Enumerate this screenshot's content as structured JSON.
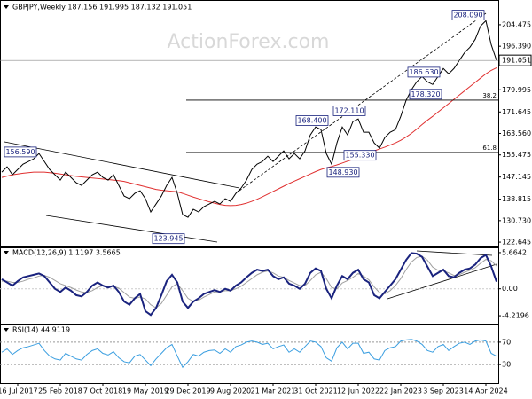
{
  "chart_data": [
    {
      "type": "line",
      "title": "GBPJPY,Weekly 187.156 191.995 187.132 191.051",
      "watermark": "ActionForex.com",
      "categories": [
        null,
        null,
        null,
        "16 Jul 2017",
        null,
        null,
        null,
        null,
        null,
        null,
        null,
        "25 Feb 2018",
        null,
        null,
        null,
        null,
        null,
        null,
        null,
        "7 Oct 2018",
        null,
        null,
        null,
        null,
        null,
        null,
        null,
        "19 May 2019",
        null,
        null,
        null,
        null,
        null,
        null,
        null,
        "29 Dec 2019",
        null,
        null,
        null,
        null,
        null,
        null,
        null,
        "9 Aug 2020",
        null,
        null,
        null,
        null,
        null,
        null,
        null,
        "21 Mar 2021",
        null,
        null,
        null,
        null,
        null,
        null,
        null,
        "31 Oct 2021",
        null,
        null,
        null,
        null,
        null,
        null,
        null,
        "12 Jun 2022",
        null,
        null,
        null,
        null,
        null,
        null,
        null,
        "22 Jan 2023",
        null,
        null,
        null,
        null,
        null,
        null,
        null,
        "3 Sep 2023",
        null,
        null,
        null,
        null,
        null,
        null,
        null,
        "14 Apr 2024",
        null,
        null
      ],
      "series": [
        {
          "color": "#000000",
          "values": [
            149,
            151,
            148,
            150,
            152,
            153,
            154,
            156,
            153,
            150,
            148,
            146,
            149,
            147,
            145,
            144,
            146,
            148,
            149,
            147,
            146,
            148,
            144,
            140,
            139,
            141,
            142,
            139,
            134,
            137,
            140,
            144,
            147,
            141,
            133,
            132,
            135,
            134,
            136,
            137,
            138,
            137,
            139,
            138,
            141,
            143,
            146,
            150,
            152,
            153,
            155,
            153,
            155,
            157,
            154,
            156,
            154,
            157,
            163,
            166,
            165,
            156,
            152,
            160,
            166,
            163,
            168,
            169,
            164,
            164,
            160,
            158,
            162,
            164,
            165,
            170,
            176,
            180,
            183,
            185,
            183,
            182,
            185,
            188,
            186,
            188,
            191,
            194,
            196,
            199,
            204,
            206,
            197,
            191.051
          ]
        },
        {
          "color": "#e03030",
          "values": [
            147,
            147.5,
            148,
            148.3,
            148.6,
            148.8,
            149,
            149,
            149,
            148.8,
            148.6,
            148.3,
            148,
            147.7,
            147.4,
            147.2,
            147,
            146.8,
            146.6,
            146.4,
            146.2,
            146,
            145.8,
            145.5,
            145,
            144.5,
            144,
            143.5,
            143,
            142.5,
            142.2,
            142,
            141.8,
            141.6,
            141,
            140.3,
            139.6,
            139,
            138.4,
            137.8,
            137.3,
            136.8,
            136.5,
            136.4,
            136.5,
            136.8,
            137.3,
            138,
            138.8,
            139.7,
            140.7,
            141.7,
            142.7,
            143.7,
            144.7,
            145.6,
            146.5,
            147.4,
            148.3,
            149.2,
            150,
            150.6,
            151.1,
            151.7,
            152.4,
            153.1,
            153.8,
            154.6,
            155.4,
            156.2,
            157,
            157.7,
            158.4,
            159.2,
            160,
            161,
            162.2,
            163.6,
            165.2,
            166.9,
            168.5,
            170,
            171.6,
            173.2,
            174.8,
            176.4,
            178,
            179.6,
            181.2,
            182.8,
            184.4,
            186,
            187.3,
            188.3
          ]
        }
      ],
      "ylim": [
        121,
        213.8
      ],
      "yticks": [
        204.475,
        {
          "value": 196.39,
          "label": "196.390"
        },
        179.995,
        171.645,
        {
          "value": 163.56,
          "label": "163.560"
        },
        155.475,
        147.145,
        138.815,
        {
          "value": 130.73,
          "label": "130.730"
        },
        122.645
      ],
      "annotations": [
        {
          "value": 208.09,
          "label": "208.090"
        },
        {
          "value": 186.63,
          "label": "186.630"
        },
        {
          "value": 178.32,
          "label": "178.320"
        },
        {
          "value": 172.11,
          "label": "172.110"
        },
        {
          "value": 168.4,
          "label": "168.400"
        },
        {
          "value": 156.59,
          "label": "156.590"
        },
        {
          "value": 155.33,
          "label": "155.330"
        },
        {
          "value": 148.93,
          "label": "148.930"
        },
        {
          "value": 123.945,
          "label": "123.945"
        }
      ],
      "fib_levels": [
        {
          "value": 176.1,
          "label": "38.2"
        },
        {
          "value": 156.4,
          "label": "61.8"
        }
      ]
    },
    {
      "type": "line",
      "title": "MACD(12,26,9) 1.1197 3.5665",
      "series": [
        {
          "color": "#1a237e",
          "values": [
            1.5,
            1.0,
            0.5,
            1.2,
            1.8,
            2.0,
            2.2,
            2.4,
            2.0,
            1.0,
            0.0,
            -0.5,
            0.2,
            -0.3,
            -1.0,
            -1.2,
            -0.5,
            0.5,
            1.0,
            0.5,
            0.2,
            0.5,
            -0.5,
            -2.0,
            -2.5,
            -1.5,
            -0.8,
            -3.5,
            -4.1,
            -3.0,
            -1.0,
            1.2,
            2.2,
            1.0,
            -2.0,
            -3.0,
            -2.0,
            -1.5,
            -0.8,
            -0.5,
            -0.2,
            -0.5,
            0.0,
            -0.3,
            0.5,
            1.0,
            1.8,
            2.5,
            3.0,
            2.8,
            3.0,
            2.0,
            1.5,
            1.8,
            0.8,
            0.5,
            0.0,
            0.8,
            2.5,
            3.2,
            2.8,
            0.0,
            -1.5,
            0.5,
            2.0,
            1.5,
            2.5,
            3.0,
            1.5,
            1.0,
            -1.0,
            -1.5,
            -0.5,
            0.5,
            1.5,
            3.0,
            4.5,
            5.6,
            5.5,
            5.0,
            3.5,
            2.0,
            2.5,
            3.0,
            2.0,
            1.8,
            2.5,
            3.0,
            3.2,
            3.8,
            4.8,
            5.3,
            3.5,
            1.1197
          ]
        },
        {
          "color": "#a0a0a0",
          "values": [
            1.2,
            1.2,
            1.0,
            1.0,
            1.2,
            1.5,
            1.7,
            2.0,
            2.1,
            1.8,
            1.3,
            0.8,
            0.5,
            0.2,
            -0.2,
            -0.5,
            -0.6,
            -0.3,
            0.2,
            0.5,
            0.4,
            0.4,
            0.1,
            -0.6,
            -1.3,
            -1.5,
            -1.3,
            -1.6,
            -2.5,
            -3.0,
            -2.3,
            -1.0,
            0.3,
            0.8,
            -0.3,
            -1.5,
            -2.0,
            -1.8,
            -1.3,
            -0.9,
            -0.5,
            -0.5,
            -0.3,
            -0.3,
            0.0,
            0.4,
            1.0,
            1.6,
            2.2,
            2.6,
            2.8,
            2.5,
            2.0,
            1.8,
            1.3,
            0.9,
            0.5,
            0.5,
            1.3,
            2.2,
            2.6,
            1.6,
            0.2,
            0.0,
            0.9,
            1.3,
            1.8,
            2.4,
            2.0,
            1.4,
            0.3,
            -0.6,
            -0.8,
            -0.3,
            0.5,
            1.6,
            3.0,
            4.2,
            4.9,
            5.1,
            4.5,
            3.4,
            2.9,
            2.8,
            2.5,
            2.1,
            2.2,
            2.6,
            2.9,
            3.3,
            4.0,
            4.6,
            4.4,
            3.5665
          ]
        }
      ],
      "ylim": [
        -5.6,
        6.35
      ],
      "yticks": [
        5.6642,
        {
          "value": 0,
          "label": "0.00"
        },
        -4.2196
      ]
    },
    {
      "type": "line",
      "title": "RSI(14) 44.9119",
      "series": [
        {
          "color": "#3a9ee0",
          "values": [
            52,
            58,
            48,
            55,
            60,
            62,
            65,
            68,
            55,
            45,
            40,
            38,
            50,
            45,
            40,
            38,
            48,
            55,
            58,
            50,
            47,
            53,
            42,
            35,
            33,
            45,
            48,
            38,
            28,
            40,
            50,
            60,
            66,
            45,
            25,
            35,
            48,
            45,
            52,
            55,
            56,
            50,
            58,
            52,
            62,
            65,
            70,
            72,
            70,
            66,
            68,
            58,
            62,
            65,
            52,
            58,
            52,
            62,
            72,
            70,
            62,
            42,
            36,
            60,
            70,
            58,
            68,
            68,
            50,
            52,
            40,
            38,
            55,
            60,
            62,
            72,
            74,
            75,
            72,
            66,
            55,
            52,
            62,
            66,
            55,
            62,
            68,
            70,
            66,
            72,
            74,
            72,
            50,
            44.9119
          ]
        }
      ],
      "ylim": [
        0,
        100
      ],
      "yticks": [
        70,
        30
      ]
    }
  ]
}
